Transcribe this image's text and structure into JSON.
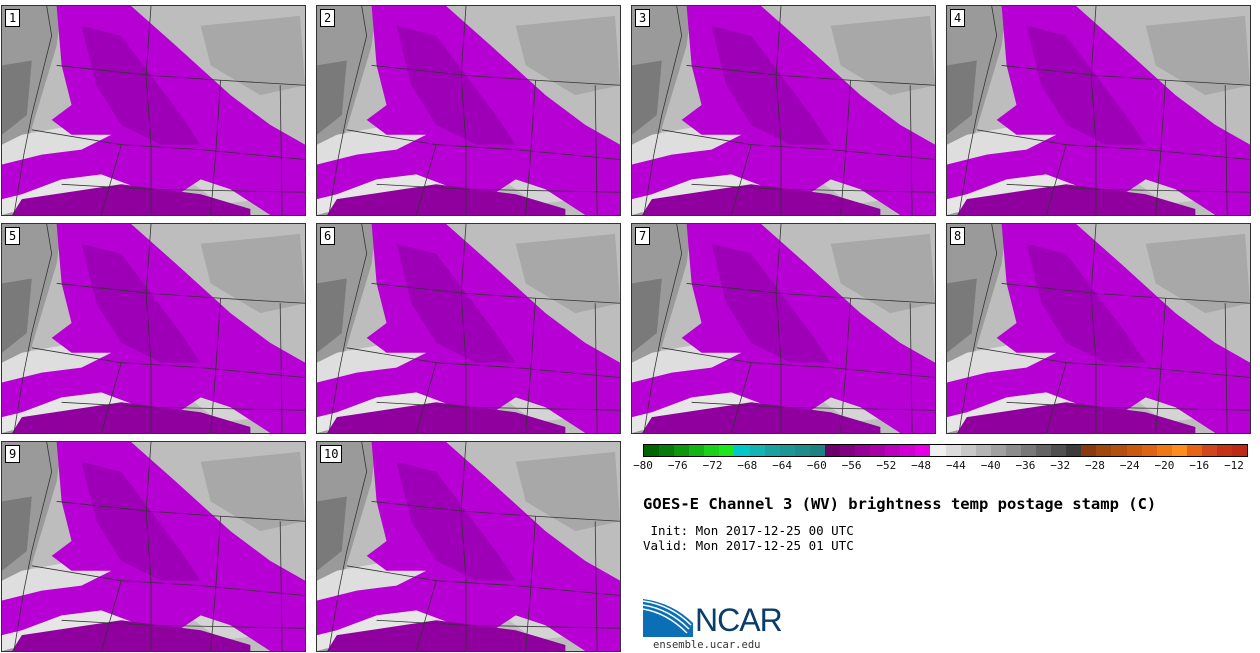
{
  "stamps": [
    {
      "label": "1"
    },
    {
      "label": "2"
    },
    {
      "label": "3"
    },
    {
      "label": "4"
    },
    {
      "label": "5"
    },
    {
      "label": "6"
    },
    {
      "label": "7"
    },
    {
      "label": "8"
    },
    {
      "label": "9"
    },
    {
      "label": "10"
    }
  ],
  "colorbar": {
    "colors": [
      "#006400",
      "#0a7a0a",
      "#0f960f",
      "#14b414",
      "#19d219",
      "#1ee61e",
      "#00c8c8",
      "#14b4b4",
      "#1ea0a0",
      "#1e9696",
      "#1e8c8c",
      "#1e8282",
      "#6e006e",
      "#820082",
      "#960096",
      "#aa00aa",
      "#be00be",
      "#d200d2",
      "#e600e6",
      "#f0f0f0",
      "#dcdcdc",
      "#c8c8c8",
      "#b4b4b4",
      "#a0a0a0",
      "#8c8c8c",
      "#787878",
      "#646464",
      "#505050",
      "#3c3c3c",
      "#8b3a0f",
      "#a0460f",
      "#b4500f",
      "#c85a0f",
      "#dc6414",
      "#f07814",
      "#ff8c1e",
      "#e66414",
      "#d2461e",
      "#c83214",
      "#be2814"
    ],
    "ticks": [
      "−80",
      "−76",
      "−72",
      "−68",
      "−64",
      "−60",
      "−56",
      "−52",
      "−48",
      "−44",
      "−40",
      "−36",
      "−32",
      "−28",
      "−24",
      "−20",
      "−16",
      "−12"
    ]
  },
  "title": "GOES-E Channel 3 (WV) brightness temp postage stamp (C)",
  "init": " Init: Mon 2017-12-25 00 UTC",
  "valid": "Valid: Mon 2017-12-25 01 UTC",
  "logo": {
    "text": "NCAR",
    "url": "ensemble.ucar.edu"
  }
}
